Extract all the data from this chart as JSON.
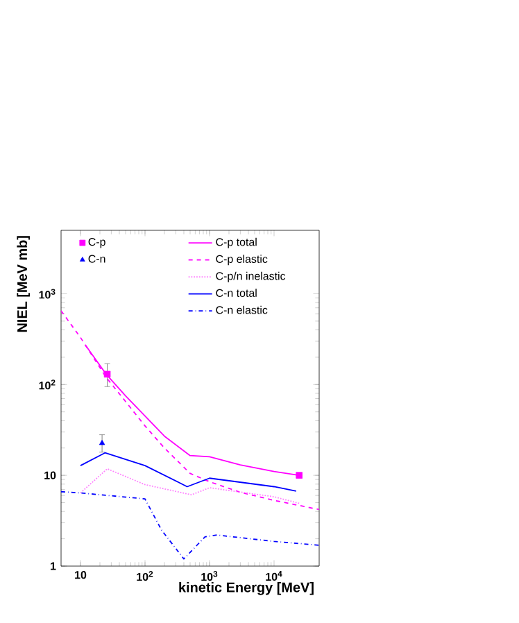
{
  "chart_data": {
    "type": "line",
    "xlabel": "kinetic Energy [MeV]",
    "ylabel": "NIEL [MeV mb]",
    "log": "xy",
    "legend": "top",
    "grid": false,
    "xlim": [
      5,
      50000
    ],
    "ylim": [
      1,
      5000
    ],
    "xticks": [
      10,
      {
        "value": 100,
        "label": "10$^{2}$"
      },
      {
        "value": 1000,
        "label": "10$^{3}$"
      },
      {
        "value": 10000,
        "label": "10$^{4}$"
      }
    ],
    "yticks": [
      1,
      10,
      {
        "value": 100,
        "label": "10$^{2}$"
      },
      {
        "value": 1000,
        "label": "10$^{3}$"
      }
    ],
    "series": [
      {
        "name": "C-p",
        "type": "scatter",
        "marker": "square",
        "color": "#ff00ff",
        "x": [
          26,
          24500
        ],
        "values": [
          130,
          10
        ],
        "errors": [
          [
            95,
            170
          ],
          null
        ]
      },
      {
        "name": "C-n",
        "type": "scatter",
        "marker": "triangle",
        "color": "#0000ff",
        "x": [
          21.6
        ],
        "values": [
          22.6
        ],
        "errors": [
          [
            18,
            28
          ]
        ]
      },
      {
        "name": "C-p total",
        "type": "line",
        "line_style": "solid",
        "color": "#ff00ff",
        "x": [
          12,
          25,
          50,
          100,
          200,
          500,
          1000,
          3000,
          10000,
          24500
        ],
        "values": [
          270,
          130,
          75,
          45,
          27,
          16.5,
          16,
          13,
          11,
          10
        ]
      },
      {
        "name": "C-p elastic",
        "type": "line",
        "line_style": "dashed",
        "color": "#ff00ff",
        "x": [
          5,
          10,
          25,
          50,
          100,
          200,
          500,
          1000,
          3000,
          10000,
          50000
        ],
        "values": [
          650,
          330,
          120,
          65,
          35,
          20,
          10.5,
          8.5,
          6.5,
          5.3,
          4.2
        ]
      },
      {
        "name": "C-p/n inelastic",
        "type": "line",
        "line_style": "dotted",
        "color": "#ff80ff",
        "x": [
          10,
          26,
          100,
          525,
          1000,
          10000,
          25000
        ],
        "values": [
          6.4,
          11.8,
          7.9,
          6.1,
          7.3,
          5.8,
          4.9
        ]
      },
      {
        "name": "C-n total",
        "type": "line",
        "line_style": "solid",
        "color": "#0000ff",
        "x": [
          10,
          24,
          100,
          450,
          1000,
          10000,
          22000
        ],
        "values": [
          12.8,
          17.7,
          12.8,
          7.5,
          9.3,
          7.5,
          6.7
        ]
      },
      {
        "name": "C-n elastic",
        "type": "line",
        "line_style": "dashdotted",
        "color": "#0000ff",
        "x": [
          5,
          10,
          100,
          180,
          400,
          850,
          1300,
          10000,
          50000
        ],
        "values": [
          6.6,
          6.4,
          5.5,
          2.5,
          1.2,
          2.1,
          2.2,
          1.87,
          1.7
        ]
      }
    ]
  }
}
